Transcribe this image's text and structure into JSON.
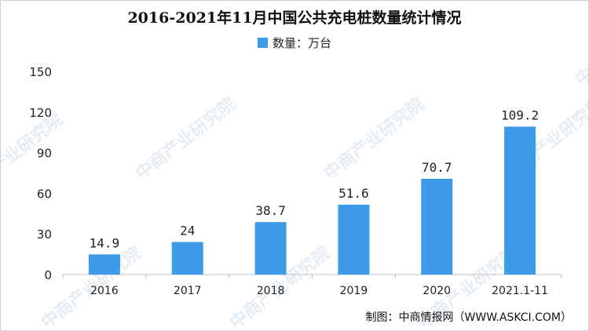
{
  "chart_data": {
    "type": "bar",
    "title": "2016-2021年11月中国公共充电桩数量统计情况",
    "legend": {
      "series_label": "数量：万台",
      "placement": "top-center"
    },
    "categories": [
      "2016",
      "2017",
      "2018",
      "2019",
      "2020",
      "2021.1-11"
    ],
    "series": [
      {
        "name": "数量：万台",
        "values": [
          14.9,
          24,
          38.7,
          51.6,
          70.7,
          109.2
        ],
        "color": "#3d9be9"
      }
    ],
    "data_labels": [
      "14.9",
      "24",
      "38.7",
      "51.6",
      "70.7",
      "109.2"
    ],
    "ylim": [
      0,
      150
    ],
    "yticks": [
      0,
      30,
      60,
      90,
      120,
      150
    ],
    "grid": false
  },
  "source": "制图：中商情报网（WWW.ASKCI.COM）",
  "watermark": "中商产业研究院"
}
